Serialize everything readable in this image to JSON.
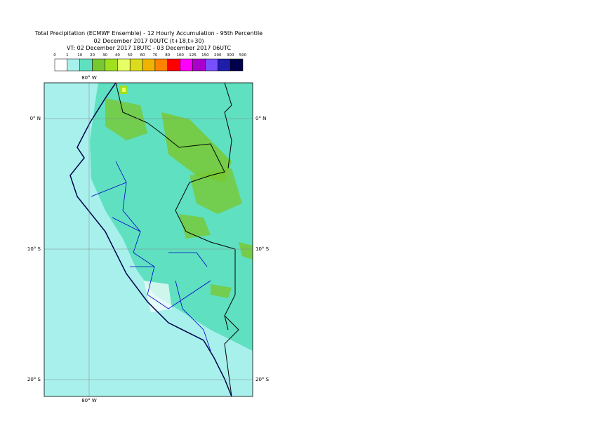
{
  "title": {
    "line1": "Total Precipitation (ECMWF Ensemble) - 12 Hourly Accumulation - 95th Percentile",
    "line2": "02 December 2017 00UTC (t+18,t+30)",
    "line3": "VT: 02 December 2017 18UTC - 03 December 2017 06UTC"
  },
  "legend": {
    "labels": [
      0,
      1,
      10,
      20,
      30,
      40,
      50,
      60,
      70,
      80,
      100,
      125,
      150,
      200,
      300,
      500
    ],
    "colors": [
      "#ffffff",
      "#a8f0ec",
      "#5fe0c0",
      "#78c832",
      "#a0e01e",
      "#e6ff64",
      "#dcdc1e",
      "#f0b400",
      "#ff8200",
      "#ff0000",
      "#ff00ff",
      "#aa00cc",
      "#7850ff",
      "#1e1eaa",
      "#00004b"
    ]
  },
  "map": {
    "lon_label": "80° W",
    "lat_labels": [
      "0° N",
      "10° S",
      "20° S"
    ]
  }
}
